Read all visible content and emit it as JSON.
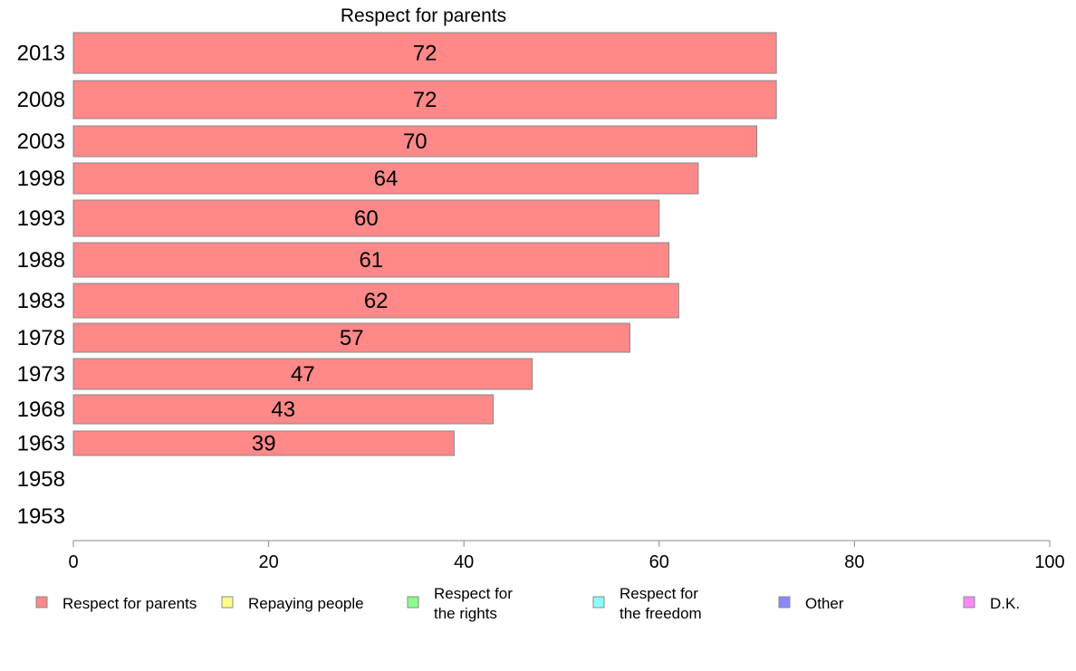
{
  "chart_data": {
    "type": "bar",
    "orientation": "horizontal",
    "title": "Respect for parents",
    "categories": [
      "2013",
      "2008",
      "2003",
      "1998",
      "1993",
      "1988",
      "1983",
      "1978",
      "1973",
      "1968",
      "1963",
      "1958",
      "1953"
    ],
    "series": [
      {
        "name": "Respect for parents",
        "values": [
          72,
          72,
          70,
          64,
          60,
          61,
          62,
          57,
          47,
          43,
          39,
          null,
          null
        ],
        "labels": [
          "72",
          "72",
          "70",
          "64",
          "60",
          "61",
          "62",
          "57",
          "47",
          "43",
          "39",
          "",
          ""
        ],
        "color": "#ff8888"
      }
    ],
    "xlim": [
      0,
      100
    ],
    "xticks": [
      "0",
      "20",
      "40",
      "60",
      "80",
      "100"
    ],
    "grid": false,
    "legend": {
      "placement": "bottom",
      "entries": [
        {
          "label": [
            "Respect for parents"
          ],
          "color": "#ff8888"
        },
        {
          "label": [
            "Repaying people"
          ],
          "color": "#ffff88"
        },
        {
          "label": [
            "Respect for",
            "the rights"
          ],
          "color": "#88ff88"
        },
        {
          "label": [
            "Respect for",
            "the freedom"
          ],
          "color": "#88ffff"
        },
        {
          "label": [
            "Other"
          ],
          "color": "#8888ff"
        },
        {
          "label": [
            "D.K."
          ],
          "color": "#ff88ff"
        }
      ]
    }
  }
}
